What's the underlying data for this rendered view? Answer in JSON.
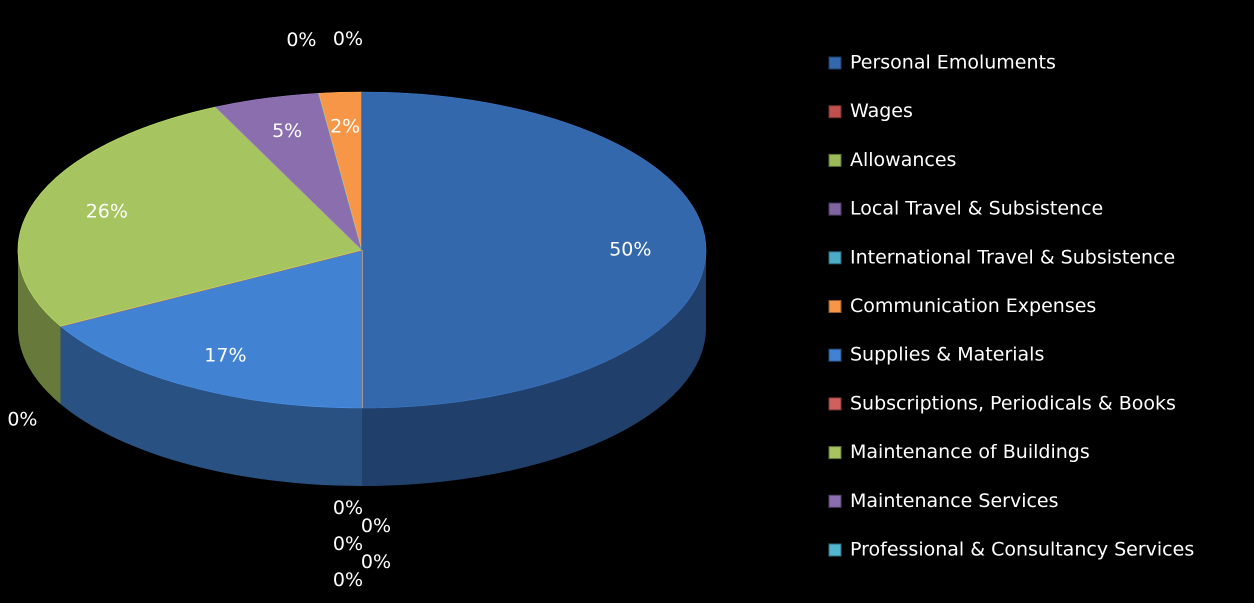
{
  "chart_data": {
    "type": "pie",
    "categories": [
      "Personal Emoluments",
      "Wages",
      "Allowances",
      "Local Travel & Subsistence",
      "International Travel & Subsistence",
      "Communication Expenses",
      "Supplies & Materials",
      "Subscriptions, Periodicals & Books",
      "Maintenance of Buildings",
      "Maintenance Services",
      "Professional & Consultancy Services",
      null,
      null
    ],
    "values": [
      50,
      0,
      0,
      0,
      0,
      0,
      17,
      0,
      26,
      5,
      0,
      2,
      0
    ],
    "value_labels": [
      "50%",
      "0%",
      "0%",
      "0%",
      "0%",
      "0%",
      "17%",
      "0%",
      "26%",
      "5%",
      "0%",
      "2%",
      "0%"
    ],
    "colors": [
      "#3468ad",
      "#c0504d",
      "#9bbb59",
      "#8064a2",
      "#4bacc6",
      "#f79646",
      "#4282d2",
      "#d0605d",
      "#a6c45f",
      "#8a6eae",
      "#52b8d2",
      "#f79646",
      "#3468ad"
    ],
    "legend": "right"
  }
}
